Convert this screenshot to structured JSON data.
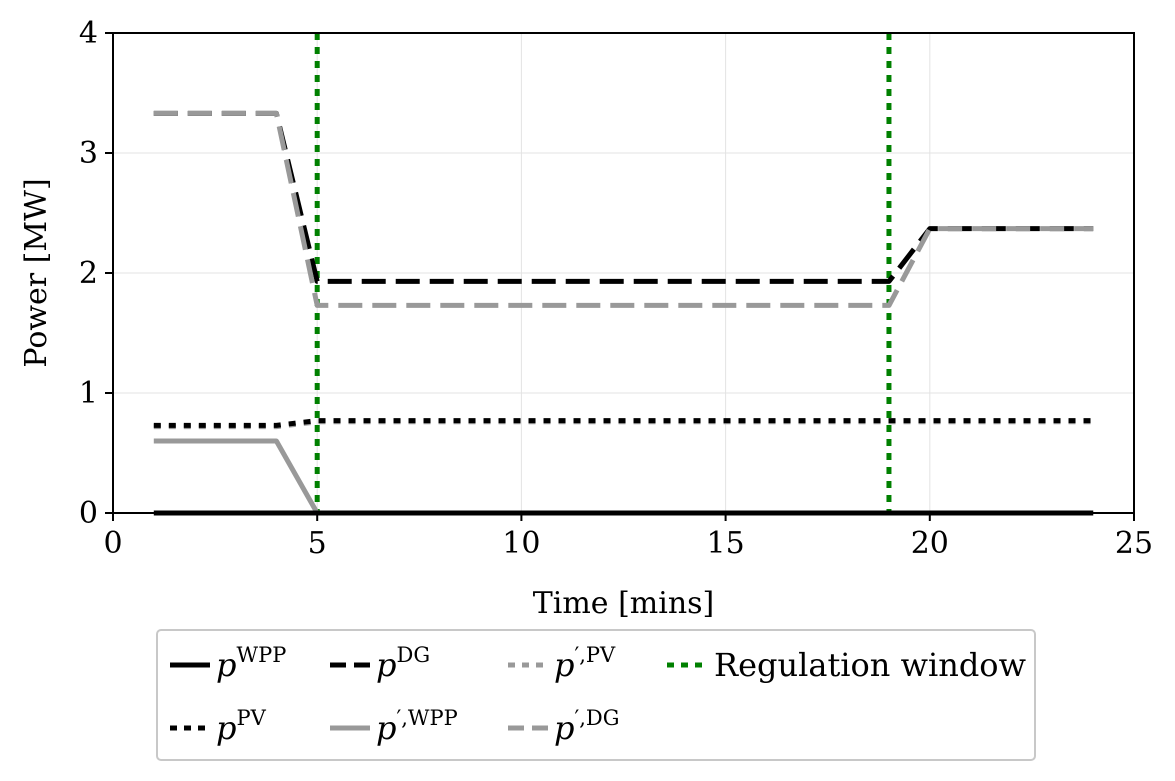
{
  "chart_data": {
    "type": "line",
    "title": "",
    "xlabel": "Time [mins]",
    "ylabel": "Power [MW]",
    "xlim": [
      0,
      25
    ],
    "ylim": [
      0,
      4
    ],
    "xticks": [
      0,
      5,
      10,
      15,
      20,
      25
    ],
    "yticks": [
      0,
      1,
      2,
      3,
      4
    ],
    "grid": true,
    "legend_placement": "bottom",
    "series": [
      {
        "key": "pWPP",
        "label_base": "p",
        "label_sup": "WPP",
        "label_prime": false,
        "color": "#000000",
        "style": "solid",
        "x": [
          1,
          4,
          5,
          19,
          20,
          24
        ],
        "y": [
          0.0,
          0.0,
          0.0,
          0.0,
          0.0,
          0.0
        ]
      },
      {
        "key": "pPV",
        "label_base": "p",
        "label_sup": "PV",
        "label_prime": false,
        "color": "#000000",
        "style": "dotted",
        "x": [
          1,
          4,
          5,
          19,
          20,
          24
        ],
        "y": [
          0.73,
          0.73,
          0.77,
          0.77,
          0.77,
          0.77
        ]
      },
      {
        "key": "pDG",
        "label_base": "p",
        "label_sup": "DG",
        "label_prime": false,
        "color": "#000000",
        "style": "dashed",
        "x": [
          1,
          4,
          5,
          19,
          20,
          24
        ],
        "y": [
          3.33,
          3.33,
          1.93,
          1.93,
          2.37,
          2.37
        ]
      },
      {
        "key": "ppWPP",
        "label_base": "p",
        "label_sup": "WPP",
        "label_prime": true,
        "color": "#999999",
        "style": "solid",
        "x": [
          1,
          4,
          5,
          19,
          20,
          24
        ],
        "y": [
          0.6,
          0.6,
          0.0,
          0.0,
          0.0,
          0.0
        ]
      },
      {
        "key": "ppPV",
        "label_base": "p",
        "label_sup": "PV",
        "label_prime": true,
        "color": "#999999",
        "style": "dotted",
        "x": [
          1,
          4,
          5,
          19,
          20,
          24
        ],
        "y": [
          0.72,
          0.72,
          0.76,
          0.76,
          0.76,
          0.76
        ]
      },
      {
        "key": "ppDG",
        "label_base": "p",
        "label_sup": "DG",
        "label_prime": true,
        "color": "#999999",
        "style": "dashed",
        "x": [
          1,
          4,
          5,
          19,
          20,
          24
        ],
        "y": [
          3.33,
          3.33,
          1.73,
          1.73,
          2.37,
          2.37
        ]
      }
    ],
    "regulation_window": {
      "label": "Regulation window",
      "color": "#008000",
      "x": [
        5,
        19
      ]
    },
    "legend_order": [
      "pWPP",
      "pDG",
      "ppPV",
      "regulation_window",
      "pPV",
      "ppWPP",
      "ppDG"
    ]
  }
}
